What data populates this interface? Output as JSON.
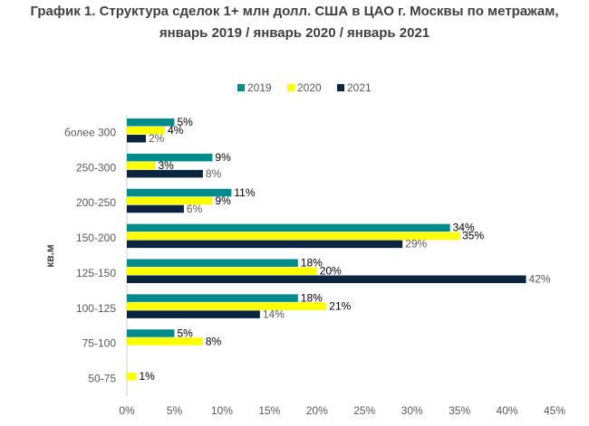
{
  "chart_data": {
    "type": "bar",
    "orientation": "horizontal",
    "title_line1": "График 1. Структура сделок 1+ млн долл. США в ЦАО г. Москвы по метражам,",
    "title_line2": "январь 2019 / январь 2020 / январь 2021",
    "ylabel": "кв.м",
    "xlabel": "",
    "xlim": [
      0,
      45
    ],
    "xticks": [
      "0%",
      "5%",
      "10%",
      "15%",
      "20%",
      "25%",
      "30%",
      "35%",
      "40%",
      "45%"
    ],
    "legend_position": "top-center",
    "categories": [
      "более 300",
      "250-300",
      "200-250",
      "150-200",
      "125-150",
      "100-125",
      "75-100",
      "50-75"
    ],
    "series": [
      {
        "name": "2019",
        "color": "#008b8b",
        "values": [
          5,
          9,
          11,
          34,
          18,
          18,
          5,
          null
        ],
        "labels": [
          "5%",
          "9%",
          "11%",
          "34%",
          "18%",
          "18%",
          "5%",
          ""
        ]
      },
      {
        "name": "2020",
        "color": "#ffff00",
        "values": [
          4,
          3,
          9,
          35,
          20,
          21,
          8,
          1
        ],
        "labels": [
          "4%",
          "3%",
          "9%",
          "35%",
          "20%",
          "21%",
          "8%",
          "1%"
        ]
      },
      {
        "name": "2021",
        "color": "#0b2440",
        "values": [
          2,
          8,
          6,
          29,
          42,
          14,
          null,
          null
        ],
        "labels": [
          "2%",
          "8%",
          "6%",
          "29%",
          "42%",
          "14%",
          "",
          ""
        ]
      }
    ]
  }
}
